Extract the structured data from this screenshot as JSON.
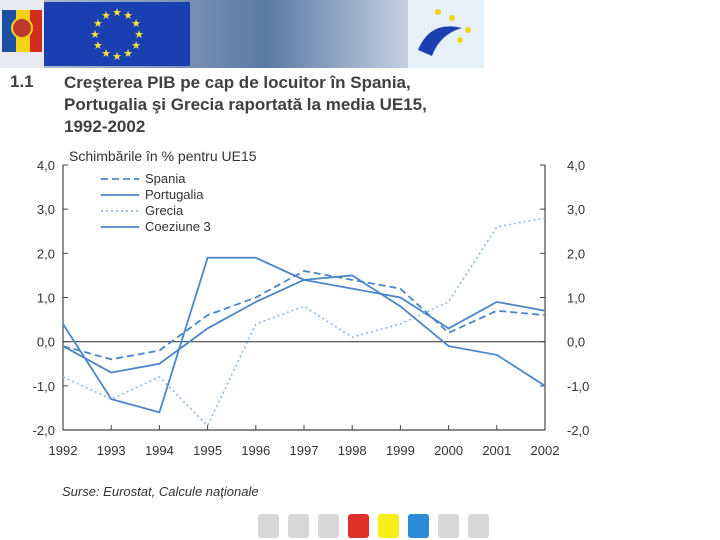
{
  "header": {
    "flag_colors": [
      "#1d4fa0",
      "#f4d21c",
      "#d52b1e"
    ],
    "eu_flag_color": "#1a3fb0",
    "eu_star_color": "#f7e23a",
    "gradient_colors": [
      "#bfc8d4",
      "#4a6d9a",
      "#ffffff"
    ],
    "logo_bg": "#e6f0f8"
  },
  "title": {
    "number": "1.1",
    "lines": [
      "Creşterea PIB pe cap de locuitor în Spania,",
      "Portugalia şi Grecia raportată la media UE15,",
      "1992-2002"
    ]
  },
  "chart_data": {
    "type": "line",
    "subtitle": "Schimbările în % pentru UE15",
    "categories": [
      "1992",
      "1993",
      "1994",
      "1995",
      "1996",
      "1997",
      "1998",
      "1999",
      "2000",
      "2001",
      "2002"
    ],
    "ylim": [
      -2.0,
      4.0
    ],
    "yticks": [
      "4,0",
      "3,0",
      "2,0",
      "1,0",
      "0,0",
      "-1,0",
      "-2,0"
    ],
    "legend_position": "top-left",
    "grid": false,
    "series": [
      {
        "name": "Spania",
        "style": "dashed",
        "color": "#4a86c8",
        "values": [
          -0.1,
          -0.4,
          -0.2,
          0.6,
          1.0,
          1.6,
          1.4,
          1.2,
          0.2,
          0.7,
          0.6
        ]
      },
      {
        "name": "Portugalia",
        "style": "solid",
        "color": "#4a86c8",
        "values": [
          0.4,
          -1.3,
          -1.6,
          1.9,
          1.9,
          1.4,
          1.2,
          1.0,
          0.3,
          0.9,
          0.7
        ]
      },
      {
        "name": "Grecia",
        "style": "dotted",
        "color": "#8db8e8",
        "values": [
          -0.8,
          -1.3,
          -0.8,
          -1.9,
          0.4,
          0.8,
          0.1,
          0.4,
          0.9,
          2.6,
          2.8
        ]
      },
      {
        "name": "Coeziune 3",
        "style": "solid",
        "color": "#4a86c8",
        "values": [
          -0.1,
          -0.7,
          -0.5,
          0.3,
          0.9,
          1.4,
          1.5,
          0.8,
          -0.1,
          -0.3,
          -1.0
        ]
      }
    ]
  },
  "source": "Surse: Eurostat, Calcule naţionale",
  "nav_squares": [
    "#d8d8d8",
    "#d8d8d8",
    "#d8d8d8",
    "#e0302a",
    "#f7ee1a",
    "#2a8ad8",
    "#d8d8d8",
    "#d8d8d8"
  ]
}
